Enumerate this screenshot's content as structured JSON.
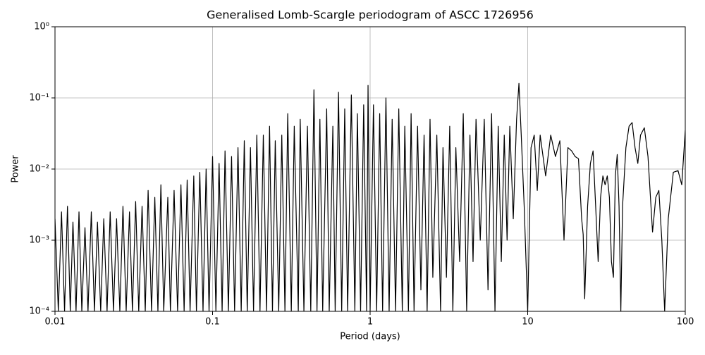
{
  "chart_data": {
    "type": "line",
    "title": "Generalised Lomb-Scargle periodogram of ASCC 1726956",
    "x_label": "Period (days)",
    "y_label": "Power",
    "x_log": true,
    "y_log": true,
    "grid": true,
    "color": "#000000",
    "xlim": [
      0.01,
      100
    ],
    "xticks": [
      0.01,
      0.1,
      1,
      10,
      100
    ],
    "ylim": [
      0.0001,
      1
    ],
    "yticks": [
      {
        "value": 0.0001,
        "label": "10⁻⁴"
      },
      {
        "value": 0.001,
        "label": "10⁻³"
      },
      {
        "value": 0.01,
        "label": "10⁻²"
      },
      {
        "value": 0.1,
        "label": "10⁻¹"
      },
      {
        "value": 1,
        "label": "10⁰"
      }
    ],
    "x": [
      0.01,
      0.0105,
      0.011,
      0.0115,
      0.012,
      0.0125,
      0.013,
      0.0136,
      0.0142,
      0.0148,
      0.0155,
      0.0162,
      0.017,
      0.0178,
      0.0186,
      0.0195,
      0.0204,
      0.0214,
      0.0224,
      0.0235,
      0.0246,
      0.0258,
      0.027,
      0.0283,
      0.0297,
      0.031,
      0.0325,
      0.034,
      0.0357,
      0.0374,
      0.039,
      0.041,
      0.043,
      0.045,
      0.047,
      0.049,
      0.052,
      0.054,
      0.057,
      0.06,
      0.063,
      0.066,
      0.069,
      0.072,
      0.076,
      0.079,
      0.083,
      0.087,
      0.091,
      0.095,
      0.1,
      0.105,
      0.11,
      0.115,
      0.12,
      0.126,
      0.132,
      0.138,
      0.145,
      0.152,
      0.159,
      0.166,
      0.174,
      0.182,
      0.191,
      0.2,
      0.21,
      0.22,
      0.23,
      0.24,
      0.25,
      0.263,
      0.275,
      0.288,
      0.3,
      0.316,
      0.33,
      0.35,
      0.36,
      0.38,
      0.4,
      0.42,
      0.44,
      0.46,
      0.48,
      0.5,
      0.53,
      0.55,
      0.58,
      0.6,
      0.63,
      0.66,
      0.69,
      0.72,
      0.76,
      0.8,
      0.83,
      0.87,
      0.91,
      0.95,
      0.97,
      1.0,
      1.05,
      1.1,
      1.15,
      1.2,
      1.26,
      1.32,
      1.38,
      1.45,
      1.52,
      1.6,
      1.66,
      1.75,
      1.82,
      1.9,
      2.0,
      2.1,
      2.2,
      2.3,
      2.4,
      2.5,
      2.65,
      2.8,
      2.9,
      3.05,
      3.2,
      3.35,
      3.5,
      3.7,
      3.9,
      4.1,
      4.3,
      4.5,
      4.7,
      5.0,
      5.3,
      5.6,
      5.9,
      6.2,
      6.5,
      6.8,
      7.1,
      7.4,
      7.7,
      8.1,
      8.5,
      8.8,
      9.1,
      9.5,
      10,
      10.5,
      11,
      11.5,
      12,
      13,
      14,
      15,
      16,
      17,
      18,
      19,
      20,
      21,
      22,
      22.5,
      23,
      24,
      25,
      26,
      27,
      28,
      29,
      30,
      31,
      32,
      33,
      34,
      35,
      36,
      37,
      38,
      39,
      40,
      42,
      44,
      46,
      48,
      50,
      52,
      55,
      58,
      62,
      65,
      68,
      71,
      74,
      78,
      84,
      90,
      95,
      100
    ],
    "values": [
      0.002,
      0.0001,
      0.0025,
      0.0001,
      0.003,
      0.0001,
      0.0018,
      0.0001,
      0.0025,
      0.0001,
      0.0015,
      0.0001,
      0.0025,
      0.0001,
      0.0018,
      0.0001,
      0.002,
      0.0001,
      0.0025,
      0.0001,
      0.002,
      0.0001,
      0.003,
      0.0001,
      0.0025,
      0.0001,
      0.0035,
      0.0001,
      0.003,
      0.0001,
      0.005,
      0.0001,
      0.004,
      0.0001,
      0.006,
      0.0001,
      0.004,
      0.0001,
      0.005,
      0.0001,
      0.006,
      0.0001,
      0.007,
      0.0001,
      0.008,
      0.0001,
      0.009,
      0.0001,
      0.01,
      0.0001,
      0.015,
      0.0001,
      0.012,
      0.0001,
      0.018,
      0.0001,
      0.015,
      0.0001,
      0.02,
      0.0001,
      0.025,
      0.0001,
      0.02,
      0.0001,
      0.03,
      0.0001,
      0.03,
      0.0001,
      0.04,
      0.0001,
      0.025,
      0.0001,
      0.03,
      0.0001,
      0.06,
      0.0001,
      0.04,
      0.0001,
      0.05,
      0.0001,
      0.04,
      0.0001,
      0.13,
      0.0001,
      0.05,
      0.0001,
      0.07,
      0.0001,
      0.04,
      0.0001,
      0.12,
      0.0001,
      0.07,
      0.0001,
      0.11,
      0.0001,
      0.06,
      0.0001,
      0.08,
      0.0001,
      0.15,
      0.0001,
      0.08,
      0.0001,
      0.06,
      0.0001,
      0.1,
      0.0001,
      0.05,
      0.0001,
      0.07,
      0.0001,
      0.04,
      0.0001,
      0.06,
      0.0001,
      0.04,
      0.0002,
      0.03,
      0.0001,
      0.05,
      0.0003,
      0.03,
      0.0001,
      0.02,
      0.0003,
      0.04,
      0.0001,
      0.02,
      0.0005,
      0.06,
      0.0001,
      0.03,
      0.0005,
      0.05,
      0.001,
      0.05,
      0.0002,
      0.06,
      0.0001,
      0.04,
      0.0005,
      0.03,
      0.001,
      0.04,
      0.002,
      0.05,
      0.16,
      0.03,
      0.003,
      0.0001,
      0.02,
      0.03,
      0.005,
      0.03,
      0.008,
      0.03,
      0.015,
      0.025,
      0.001,
      0.02,
      0.018,
      0.015,
      0.014,
      0.002,
      0.0012,
      0.00015,
      0.003,
      0.012,
      0.018,
      0.003,
      0.0005,
      0.004,
      0.008,
      0.006,
      0.008,
      0.004,
      0.0005,
      0.0003,
      0.008,
      0.016,
      0.003,
      0.0001,
      0.003,
      0.02,
      0.04,
      0.045,
      0.02,
      0.012,
      0.03,
      0.038,
      0.015,
      0.0013,
      0.004,
      0.005,
      0.001,
      0.0001,
      0.002,
      0.009,
      0.0095,
      0.006,
      0.035
    ]
  }
}
